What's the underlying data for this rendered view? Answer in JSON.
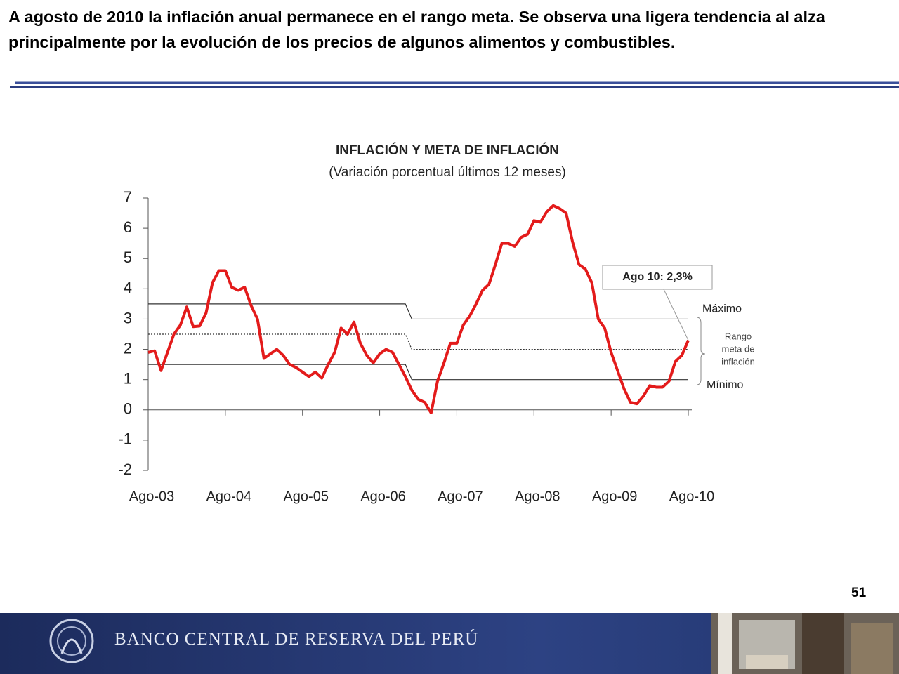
{
  "header": {
    "title": "A agosto de 2010 la inflación anual permanece en el rango meta. Se observa una ligera tendencia al alza principalmente por la evolución de los precios de algunos alimentos y combustibles."
  },
  "chart_data": {
    "type": "line",
    "title": "INFLACIÓN Y META DE INFLACIÓN",
    "subtitle": "(Variación porcentual últimos 12 meses)",
    "categories": [
      "Ago-03",
      null,
      null,
      null,
      null,
      null,
      null,
      null,
      null,
      null,
      null,
      null,
      "Ago-04",
      null,
      null,
      null,
      null,
      null,
      null,
      null,
      null,
      null,
      null,
      null,
      "Ago-05",
      null,
      null,
      null,
      null,
      null,
      null,
      null,
      null,
      null,
      null,
      null,
      "Ago-06",
      null,
      null,
      null,
      null,
      null,
      null,
      null,
      null,
      null,
      null,
      null,
      "Ago-07",
      null,
      null,
      null,
      null,
      null,
      null,
      null,
      null,
      null,
      null,
      null,
      "Ago-08",
      null,
      null,
      null,
      null,
      null,
      null,
      null,
      null,
      null,
      null,
      null,
      "Ago-09",
      null,
      null,
      null,
      null,
      null,
      null,
      null,
      null,
      null,
      null,
      null,
      "Ago-10"
    ],
    "series": [
      {
        "color": "#e31b1b",
        "values": [
          1.9,
          1.95,
          1.3,
          1.9,
          2.5,
          2.8,
          3.4,
          2.75,
          2.77,
          3.2,
          4.2,
          4.6,
          4.6,
          4.05,
          3.95,
          4.05,
          3.45,
          3.0,
          1.7,
          1.85,
          2.0,
          1.8,
          1.5,
          1.4,
          1.25,
          1.1,
          1.25,
          1.05,
          1.5,
          1.9,
          2.7,
          2.5,
          2.9,
          2.2,
          1.8,
          1.55,
          1.85,
          2.0,
          1.9,
          1.5,
          1.1,
          0.65,
          0.35,
          0.25,
          -0.1,
          0.95,
          1.55,
          2.2,
          2.2,
          2.8,
          3.1,
          3.5,
          3.95,
          4.15,
          4.8,
          5.5,
          5.5,
          5.4,
          5.7,
          5.8,
          6.25,
          6.2,
          6.55,
          6.75,
          6.65,
          6.5,
          5.55,
          4.8,
          4.65,
          4.2,
          3.0,
          2.7,
          1.9,
          1.3,
          0.7,
          0.25,
          0.2,
          0.45,
          0.8,
          0.75,
          0.75,
          0.95,
          1.6,
          1.8,
          2.3
        ]
      },
      {
        "name": "Máximo",
        "color": "#333333",
        "values": [
          3.5,
          3.5,
          3.5,
          3.5,
          3.5,
          3.5,
          3.5,
          3.5,
          3.5,
          3.5,
          3.5,
          3.5,
          3.5,
          3.5,
          3.5,
          3.5,
          3.5,
          3.5,
          3.5,
          3.5,
          3.5,
          3.5,
          3.5,
          3.5,
          3.5,
          3.5,
          3.5,
          3.5,
          3.5,
          3.5,
          3.5,
          3.5,
          3.5,
          3.5,
          3.5,
          3.5,
          3.5,
          3.5,
          3.5,
          3.5,
          3.5,
          3,
          3,
          3,
          3,
          3,
          3,
          3,
          3,
          3,
          3,
          3,
          3,
          3,
          3,
          3,
          3,
          3,
          3,
          3,
          3,
          3,
          3,
          3,
          3,
          3,
          3,
          3,
          3,
          3,
          3,
          3,
          3,
          3,
          3,
          3,
          3,
          3,
          3,
          3,
          3,
          3,
          3,
          3,
          3
        ]
      },
      {
        "name": "Mínimo",
        "color": "#333333",
        "values": [
          1.5,
          1.5,
          1.5,
          1.5,
          1.5,
          1.5,
          1.5,
          1.5,
          1.5,
          1.5,
          1.5,
          1.5,
          1.5,
          1.5,
          1.5,
          1.5,
          1.5,
          1.5,
          1.5,
          1.5,
          1.5,
          1.5,
          1.5,
          1.5,
          1.5,
          1.5,
          1.5,
          1.5,
          1.5,
          1.5,
          1.5,
          1.5,
          1.5,
          1.5,
          1.5,
          1.5,
          1.5,
          1.5,
          1.5,
          1.5,
          1.5,
          1,
          1,
          1,
          1,
          1,
          1,
          1,
          1,
          1,
          1,
          1,
          1,
          1,
          1,
          1,
          1,
          1,
          1,
          1,
          1,
          1,
          1,
          1,
          1,
          1,
          1,
          1,
          1,
          1,
          1,
          1,
          1,
          1,
          1,
          1,
          1,
          1,
          1,
          1,
          1,
          1,
          1,
          1,
          1
        ]
      },
      {
        "color": "#333333",
        "dashed": true,
        "values": [
          2.5,
          2.5,
          2.5,
          2.5,
          2.5,
          2.5,
          2.5,
          2.5,
          2.5,
          2.5,
          2.5,
          2.5,
          2.5,
          2.5,
          2.5,
          2.5,
          2.5,
          2.5,
          2.5,
          2.5,
          2.5,
          2.5,
          2.5,
          2.5,
          2.5,
          2.5,
          2.5,
          2.5,
          2.5,
          2.5,
          2.5,
          2.5,
          2.5,
          2.5,
          2.5,
          2.5,
          2.5,
          2.5,
          2.5,
          2.5,
          2.5,
          2,
          2,
          2,
          2,
          2,
          2,
          2,
          2,
          2,
          2,
          2,
          2,
          2,
          2,
          2,
          2,
          2,
          2,
          2,
          2,
          2,
          2,
          2,
          2,
          2,
          2,
          2,
          2,
          2,
          2,
          2,
          2,
          2,
          2,
          2,
          2,
          2,
          2,
          2,
          2,
          2,
          2,
          2,
          2
        ]
      }
    ],
    "ylim": [
      -2,
      7
    ],
    "yticks": [
      -2,
      -1,
      0,
      1,
      2,
      3,
      4,
      5,
      6,
      7
    ],
    "callout": "Ago 10: 2,3%",
    "range_label": [
      "Rango",
      "meta de",
      "inflación"
    ]
  },
  "page_number": "51",
  "footer": {
    "bank_name": "BANCO CENTRAL DE RESERVA DEL PERÚ"
  }
}
